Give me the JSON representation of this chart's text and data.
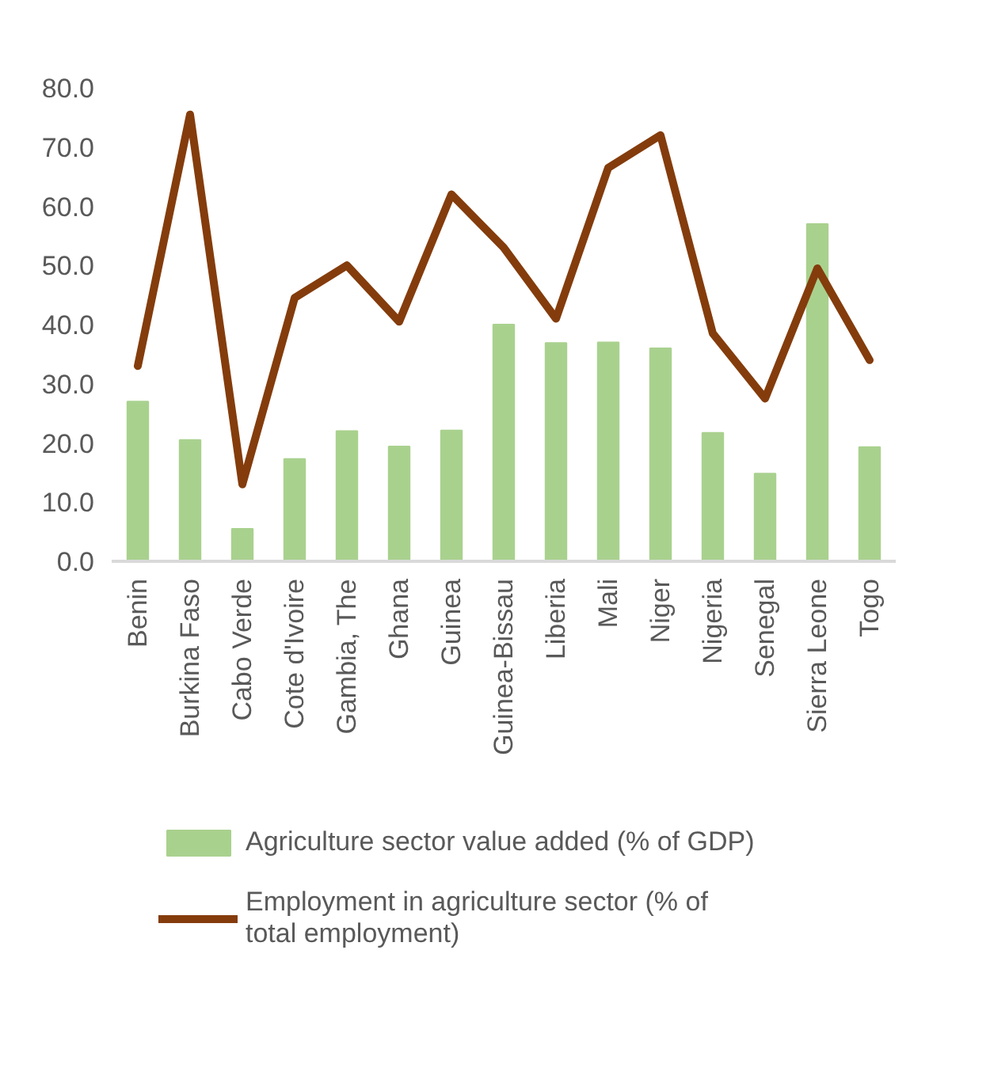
{
  "chart_data": {
    "type": "bar",
    "categories": [
      "Benin",
      "Burkina Faso",
      "Cabo Verde",
      "Cote d'Ivoire",
      "Gambia, The",
      "Ghana",
      "Guinea",
      "Guinea-Bissau",
      "Liberia",
      "Mali",
      "Niger",
      "Nigeria",
      "Senegal",
      "Sierra Leone",
      "Togo"
    ],
    "series": [
      {
        "name": "Agriculture sector value added (% of GDP)",
        "color": "#a9d18e",
        "values": [
          27.0,
          20.5,
          5.5,
          17.3,
          22.0,
          19.4,
          22.1,
          40.0,
          36.9,
          37.0,
          36.0,
          21.7,
          14.8,
          57.0,
          19.3
        ]
      },
      {
        "name": "Employment in agriculture sector (% of total employment)",
        "type": "line",
        "color": "#843c0c",
        "values": [
          33.0,
          75.5,
          13.0,
          44.5,
          50.0,
          40.5,
          62.0,
          53.0,
          41.0,
          66.5,
          72.0,
          38.5,
          27.5,
          49.5,
          34.0
        ]
      }
    ],
    "ylim": [
      0,
      80
    ],
    "yticks": [
      {
        "value": 0,
        "label": "0.0"
      },
      {
        "value": 10,
        "label": "10.0"
      },
      {
        "value": 20,
        "label": "20.0"
      },
      {
        "value": 30,
        "label": "30.0"
      },
      {
        "value": 40,
        "label": "40.0"
      },
      {
        "value": 50,
        "label": "50.0"
      },
      {
        "value": 60,
        "label": "60.0"
      },
      {
        "value": 70,
        "label": "70.0"
      },
      {
        "value": 80,
        "label": "80.0"
      }
    ],
    "grid": false,
    "legend": "bottom"
  }
}
